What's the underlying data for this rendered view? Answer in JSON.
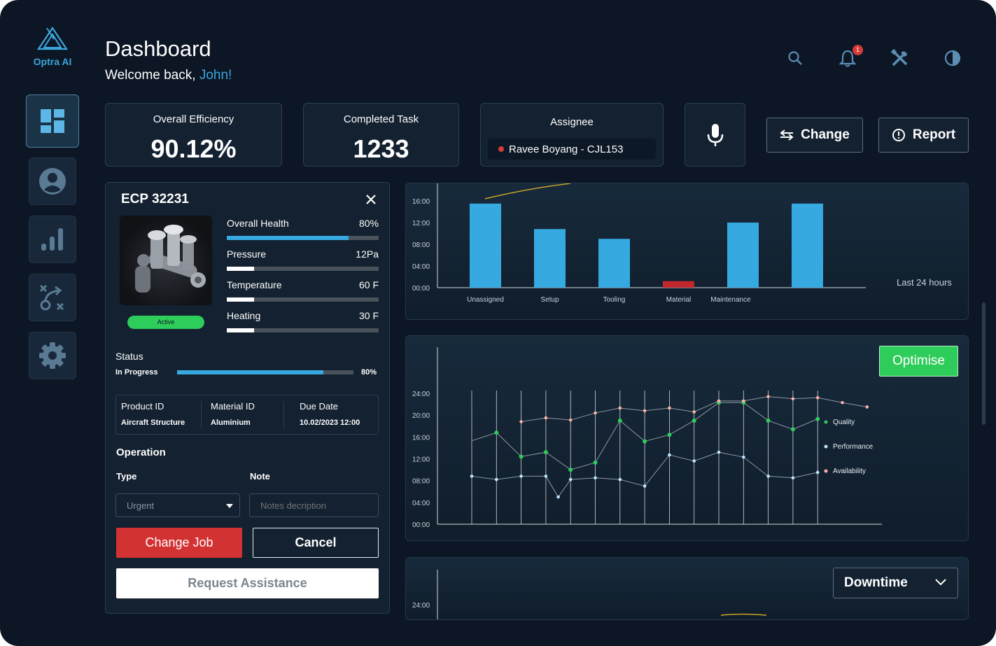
{
  "app": {
    "name": "Optra AI"
  },
  "header": {
    "title": "Dashboard",
    "welcome_prefix": "Welcome back, ",
    "user_name": "John!",
    "notification_count": "1"
  },
  "sidebar": {
    "items": [
      {
        "name": "dashboard",
        "icon": "dashboard-grid-icon",
        "active": true
      },
      {
        "name": "profile",
        "icon": "user-icon",
        "active": false
      },
      {
        "name": "analytics",
        "icon": "bar-chart-icon",
        "active": false
      },
      {
        "name": "strategy",
        "icon": "strategy-icon",
        "active": false
      },
      {
        "name": "settings",
        "icon": "gear-icon",
        "active": false
      }
    ]
  },
  "stats": {
    "efficiency": {
      "label": "Overall Efficiency",
      "value": "90.12%"
    },
    "completed": {
      "label": "Completed Task",
      "value": "1233"
    },
    "assignee": {
      "label": "Assignee",
      "value": "Ravee Boyang - CJL153"
    }
  },
  "actions": {
    "change": "Change",
    "report": "Report"
  },
  "job": {
    "title": "ECP 32231",
    "status_pill": "Active",
    "metrics": [
      {
        "label": "Overall Health",
        "value": "80%",
        "level": 0.8
      },
      {
        "label": "Pressure",
        "value": "12Pa",
        "level": 0.18
      },
      {
        "label": "Temperature",
        "value": "60 F",
        "level": 0.18
      },
      {
        "label": "Heating",
        "value": "30 F",
        "level": 0.18
      }
    ],
    "status": {
      "label": "Status",
      "state": "In Progress",
      "value": "80%",
      "level": 0.83
    },
    "info": {
      "product_label": "Product ID",
      "product": "Aircraft Structure",
      "material_label": "Material ID",
      "material": "Aluminium",
      "due_label": "Due Date",
      "due": "10.02/2023 12:00"
    },
    "operation": {
      "title": "Operation",
      "type_label": "Type",
      "type_value": "Urgent",
      "note_label": "Note",
      "note_placeholder": "Notes decription"
    },
    "buttons": {
      "change_job": "Change Job",
      "cancel": "Cancel",
      "request": "Request Assistance"
    }
  },
  "colors": {
    "accent": "#36a9e1",
    "danger": "#d23232",
    "success": "#2ecc5a",
    "background": "#0d1624"
  },
  "bar_chart_note": "Last 24 hours",
  "optimise_label": "Optimise",
  "downtime_label": "Downtime",
  "downtime_tick": "24:00",
  "chart_data": [
    {
      "type": "bar",
      "categories": [
        "Unassigned",
        "Setup",
        "Tooling",
        "Material",
        "Maintenance",
        ""
      ],
      "values": [
        15.5,
        10.8,
        9.0,
        1.2,
        12.0,
        15.5
      ],
      "bar_colors": [
        "#36a9e1",
        "#36a9e1",
        "#36a9e1",
        "#c0282d",
        "#36a9e1",
        "#36a9e1"
      ],
      "yticks": [
        "00:00",
        "04:00",
        "08:00",
        "12:00",
        "16:00"
      ],
      "ylim": [
        0,
        16
      ]
    },
    {
      "type": "line",
      "yticks": [
        "00:00",
        "04:00",
        "08:00",
        "12:00",
        "16:00",
        "20:00",
        "24:00"
      ],
      "ylim": [
        0,
        24
      ],
      "series": [
        {
          "name": "Quality",
          "color": "#2ecc5a",
          "points": [
            [
              0,
              15.3
            ],
            [
              1,
              16.8
            ],
            [
              2,
              12.4
            ],
            [
              3,
              13.2
            ],
            [
              4,
              10
            ],
            [
              5,
              11.3
            ],
            [
              6,
              19
            ],
            [
              7,
              15.2
            ],
            [
              8,
              16.4
            ],
            [
              9,
              19
            ],
            [
              10,
              22.3
            ],
            [
              11,
              22.3
            ],
            [
              12,
              19
            ],
            [
              13,
              17.4
            ],
            [
              14,
              19.3
            ]
          ]
        },
        {
          "name": "Performance",
          "color": "#bfe6ff",
          "points": [
            [
              0,
              8.8
            ],
            [
              1,
              8.2
            ],
            [
              2,
              8.8
            ],
            [
              3,
              8.8
            ],
            [
              3.5,
              5
            ],
            [
              4,
              8.2
            ],
            [
              5,
              8.5
            ],
            [
              6,
              8.2
            ],
            [
              7,
              7
            ],
            [
              8,
              12.7
            ],
            [
              9,
              11.6
            ],
            [
              10,
              13.2
            ],
            [
              11,
              12.3
            ],
            [
              12,
              8.8
            ],
            [
              13,
              8.5
            ],
            [
              14,
              9.5
            ]
          ]
        },
        {
          "name": "Availability",
          "color": "#ffb0a8",
          "points": [
            [
              2,
              18.8
            ],
            [
              3,
              19.5
            ],
            [
              4,
              19.1
            ],
            [
              5,
              20.4
            ],
            [
              6,
              21.3
            ],
            [
              7,
              20.8
            ],
            [
              8,
              21.3
            ],
            [
              9,
              20.6
            ],
            [
              10,
              22.6
            ],
            [
              11,
              22.6
            ],
            [
              12,
              23.4
            ],
            [
              13,
              23
            ],
            [
              14,
              23.2
            ],
            [
              15,
              22.3
            ],
            [
              16,
              21.5
            ]
          ]
        }
      ],
      "legend_position": "right"
    }
  ]
}
